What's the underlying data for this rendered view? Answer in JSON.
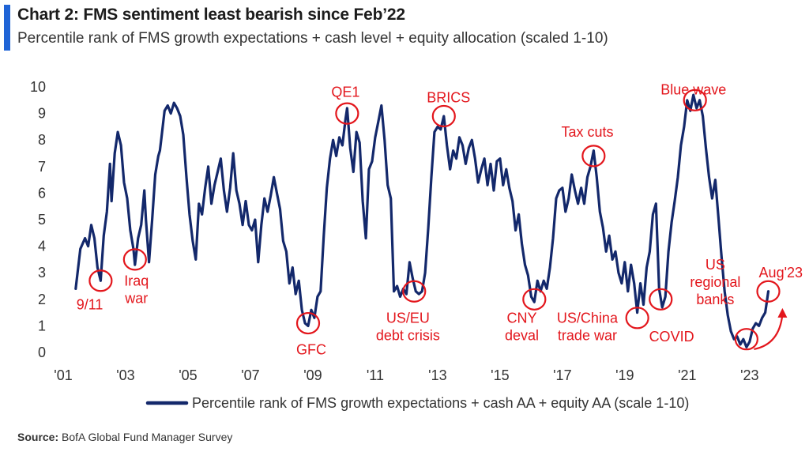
{
  "header": {
    "title": "Chart 2: FMS sentiment least bearish since Feb’22",
    "subtitle": "Percentile rank of FMS growth expectations + cash level + equity allocation (scaled 1-10)"
  },
  "footer": {
    "source_label": "Source:",
    "source_text": "BofA Global Fund Manager Survey"
  },
  "colors": {
    "line": "#13286b",
    "annotation": "#e3161c",
    "accent": "#1f64d6"
  },
  "chart_data": {
    "type": "line",
    "title": "Chart 2: FMS sentiment least bearish since Feb’22",
    "subtitle": "Percentile rank of FMS growth expectations + cash level + equity allocation (scaled 1-10)",
    "xlabel": "",
    "ylabel": "",
    "ylim": [
      0,
      10
    ],
    "yticks": [
      0,
      1,
      2,
      3,
      4,
      5,
      6,
      7,
      8,
      9,
      10
    ],
    "xlim": [
      2001.0,
      2024.6
    ],
    "xticks": [
      {
        "value": 2001.0,
        "label": "'01"
      },
      {
        "value": 2003.0,
        "label": "'03"
      },
      {
        "value": 2005.0,
        "label": "'05"
      },
      {
        "value": 2007.0,
        "label": "'07"
      },
      {
        "value": 2009.0,
        "label": "'09"
      },
      {
        "value": 2011.0,
        "label": "'11"
      },
      {
        "value": 2013.0,
        "label": "'13"
      },
      {
        "value": 2015.0,
        "label": "'15"
      },
      {
        "value": 2017.0,
        "label": "'17"
      },
      {
        "value": 2019.0,
        "label": "'19"
      },
      {
        "value": 2021.0,
        "label": "'21"
      },
      {
        "value": 2023.0,
        "label": "'23"
      }
    ],
    "grid": false,
    "legend": "bottom-center",
    "series": [
      {
        "name": "Percentile rank of FMS growth expectations + cash AA + equity AA (scale 1-10)",
        "points": [
          [
            2001.4,
            2.4
          ],
          [
            2001.55,
            3.9
          ],
          [
            2001.7,
            4.3
          ],
          [
            2001.8,
            4.0
          ],
          [
            2001.9,
            4.8
          ],
          [
            2002.0,
            4.3
          ],
          [
            2002.1,
            3.2
          ],
          [
            2002.2,
            2.7
          ],
          [
            2002.3,
            4.4
          ],
          [
            2002.4,
            5.3
          ],
          [
            2002.5,
            7.1
          ],
          [
            2002.55,
            5.7
          ],
          [
            2002.65,
            7.5
          ],
          [
            2002.75,
            8.3
          ],
          [
            2002.85,
            7.8
          ],
          [
            2002.95,
            6.4
          ],
          [
            2003.05,
            5.8
          ],
          [
            2003.15,
            4.6
          ],
          [
            2003.25,
            3.9
          ],
          [
            2003.3,
            3.3
          ],
          [
            2003.4,
            4.3
          ],
          [
            2003.5,
            4.8
          ],
          [
            2003.6,
            6.1
          ],
          [
            2003.65,
            5.0
          ],
          [
            2003.75,
            3.4
          ],
          [
            2003.85,
            5.0
          ],
          [
            2003.95,
            6.7
          ],
          [
            2004.05,
            7.4
          ],
          [
            2004.1,
            7.6
          ],
          [
            2004.15,
            8.1
          ],
          [
            2004.25,
            9.1
          ],
          [
            2004.35,
            9.3
          ],
          [
            2004.45,
            9.0
          ],
          [
            2004.55,
            9.4
          ],
          [
            2004.65,
            9.2
          ],
          [
            2004.75,
            8.9
          ],
          [
            2004.85,
            8.2
          ],
          [
            2004.95,
            6.6
          ],
          [
            2005.05,
            5.2
          ],
          [
            2005.15,
            4.2
          ],
          [
            2005.25,
            3.5
          ],
          [
            2005.35,
            5.6
          ],
          [
            2005.45,
            5.2
          ],
          [
            2005.55,
            6.2
          ],
          [
            2005.65,
            7.0
          ],
          [
            2005.75,
            5.6
          ],
          [
            2005.85,
            6.3
          ],
          [
            2005.95,
            6.8
          ],
          [
            2006.05,
            7.3
          ],
          [
            2006.15,
            6.1
          ],
          [
            2006.25,
            5.3
          ],
          [
            2006.35,
            6.2
          ],
          [
            2006.45,
            7.5
          ],
          [
            2006.55,
            6.1
          ],
          [
            2006.65,
            5.6
          ],
          [
            2006.75,
            4.8
          ],
          [
            2006.85,
            5.7
          ],
          [
            2006.95,
            4.8
          ],
          [
            2007.05,
            4.6
          ],
          [
            2007.15,
            5.0
          ],
          [
            2007.25,
            3.4
          ],
          [
            2007.35,
            4.8
          ],
          [
            2007.45,
            5.8
          ],
          [
            2007.55,
            5.3
          ],
          [
            2007.65,
            5.9
          ],
          [
            2007.75,
            6.6
          ],
          [
            2007.85,
            6.0
          ],
          [
            2007.95,
            5.4
          ],
          [
            2008.05,
            4.2
          ],
          [
            2008.15,
            3.8
          ],
          [
            2008.25,
            2.6
          ],
          [
            2008.35,
            3.2
          ],
          [
            2008.45,
            2.2
          ],
          [
            2008.55,
            2.7
          ],
          [
            2008.65,
            1.6
          ],
          [
            2008.75,
            1.1
          ],
          [
            2008.85,
            1.0
          ],
          [
            2008.95,
            1.6
          ],
          [
            2009.05,
            1.3
          ],
          [
            2009.15,
            2.1
          ],
          [
            2009.25,
            2.3
          ],
          [
            2009.35,
            4.4
          ],
          [
            2009.45,
            6.2
          ],
          [
            2009.55,
            7.3
          ],
          [
            2009.65,
            8.0
          ],
          [
            2009.75,
            7.4
          ],
          [
            2009.85,
            8.1
          ],
          [
            2009.95,
            7.8
          ],
          [
            2010.05,
            8.8
          ],
          [
            2010.1,
            9.2
          ],
          [
            2010.2,
            7.7
          ],
          [
            2010.3,
            6.8
          ],
          [
            2010.4,
            8.3
          ],
          [
            2010.5,
            7.9
          ],
          [
            2010.6,
            5.7
          ],
          [
            2010.7,
            4.3
          ],
          [
            2010.8,
            6.9
          ],
          [
            2010.9,
            7.2
          ],
          [
            2011.0,
            8.1
          ],
          [
            2011.1,
            8.7
          ],
          [
            2011.2,
            9.3
          ],
          [
            2011.3,
            8.0
          ],
          [
            2011.4,
            6.3
          ],
          [
            2011.5,
            5.8
          ],
          [
            2011.6,
            2.3
          ],
          [
            2011.7,
            2.5
          ],
          [
            2011.8,
            2.1
          ],
          [
            2011.9,
            2.4
          ],
          [
            2012.0,
            2.2
          ],
          [
            2012.1,
            3.4
          ],
          [
            2012.2,
            2.8
          ],
          [
            2012.3,
            2.3
          ],
          [
            2012.4,
            2.2
          ],
          [
            2012.5,
            2.3
          ],
          [
            2012.6,
            3.0
          ],
          [
            2012.7,
            4.7
          ],
          [
            2012.8,
            6.6
          ],
          [
            2012.9,
            8.3
          ],
          [
            2013.0,
            8.5
          ],
          [
            2013.1,
            8.4
          ],
          [
            2013.2,
            8.9
          ],
          [
            2013.3,
            7.8
          ],
          [
            2013.4,
            6.9
          ],
          [
            2013.5,
            7.6
          ],
          [
            2013.6,
            7.3
          ],
          [
            2013.7,
            8.1
          ],
          [
            2013.8,
            7.8
          ],
          [
            2013.9,
            7.1
          ],
          [
            2014.0,
            7.7
          ],
          [
            2014.1,
            8.0
          ],
          [
            2014.2,
            7.3
          ],
          [
            2014.3,
            6.4
          ],
          [
            2014.4,
            6.9
          ],
          [
            2014.5,
            7.3
          ],
          [
            2014.6,
            6.3
          ],
          [
            2014.7,
            7.1
          ],
          [
            2014.8,
            6.1
          ],
          [
            2014.9,
            7.2
          ],
          [
            2015.0,
            7.3
          ],
          [
            2015.1,
            6.3
          ],
          [
            2015.2,
            6.9
          ],
          [
            2015.3,
            6.2
          ],
          [
            2015.4,
            5.7
          ],
          [
            2015.5,
            4.6
          ],
          [
            2015.6,
            5.2
          ],
          [
            2015.7,
            4.1
          ],
          [
            2015.8,
            3.3
          ],
          [
            2015.9,
            2.9
          ],
          [
            2016.0,
            2.1
          ],
          [
            2016.1,
            1.9
          ],
          [
            2016.2,
            2.7
          ],
          [
            2016.3,
            2.3
          ],
          [
            2016.4,
            2.7
          ],
          [
            2016.5,
            2.4
          ],
          [
            2016.6,
            3.2
          ],
          [
            2016.7,
            4.3
          ],
          [
            2016.8,
            5.8
          ],
          [
            2016.9,
            6.1
          ],
          [
            2017.0,
            6.2
          ],
          [
            2017.1,
            5.3
          ],
          [
            2017.2,
            5.8
          ],
          [
            2017.3,
            6.7
          ],
          [
            2017.4,
            6.1
          ],
          [
            2017.5,
            5.6
          ],
          [
            2017.6,
            6.2
          ],
          [
            2017.7,
            5.6
          ],
          [
            2017.8,
            6.6
          ],
          [
            2017.9,
            7.0
          ],
          [
            2018.0,
            7.6
          ],
          [
            2018.1,
            6.6
          ],
          [
            2018.2,
            5.3
          ],
          [
            2018.3,
            4.7
          ],
          [
            2018.4,
            3.8
          ],
          [
            2018.5,
            4.4
          ],
          [
            2018.6,
            3.5
          ],
          [
            2018.7,
            3.8
          ],
          [
            2018.8,
            3.0
          ],
          [
            2018.9,
            2.6
          ],
          [
            2019.0,
            3.4
          ],
          [
            2019.1,
            2.3
          ],
          [
            2019.2,
            3.3
          ],
          [
            2019.3,
            2.6
          ],
          [
            2019.4,
            1.5
          ],
          [
            2019.5,
            2.6
          ],
          [
            2019.6,
            1.8
          ],
          [
            2019.7,
            3.2
          ],
          [
            2019.8,
            3.8
          ],
          [
            2019.9,
            5.2
          ],
          [
            2020.0,
            5.6
          ],
          [
            2020.1,
            2.4
          ],
          [
            2020.2,
            1.7
          ],
          [
            2020.3,
            2.1
          ],
          [
            2020.4,
            3.8
          ],
          [
            2020.5,
            4.9
          ],
          [
            2020.6,
            5.7
          ],
          [
            2020.7,
            6.6
          ],
          [
            2020.8,
            7.8
          ],
          [
            2020.9,
            8.5
          ],
          [
            2021.0,
            9.5
          ],
          [
            2021.1,
            9.1
          ],
          [
            2021.2,
            9.7
          ],
          [
            2021.3,
            9.2
          ],
          [
            2021.4,
            9.5
          ],
          [
            2021.5,
            8.9
          ],
          [
            2021.6,
            7.7
          ],
          [
            2021.7,
            6.6
          ],
          [
            2021.8,
            5.8
          ],
          [
            2021.9,
            6.5
          ],
          [
            2022.0,
            5.1
          ],
          [
            2022.1,
            3.6
          ],
          [
            2022.2,
            2.3
          ],
          [
            2022.3,
            1.4
          ],
          [
            2022.4,
            0.8
          ],
          [
            2022.5,
            0.5
          ],
          [
            2022.6,
            0.6
          ],
          [
            2022.7,
            0.3
          ],
          [
            2022.8,
            0.5
          ],
          [
            2022.9,
            0.2
          ],
          [
            2023.0,
            0.4
          ],
          [
            2023.1,
            0.9
          ],
          [
            2023.2,
            1.1
          ],
          [
            2023.3,
            1.0
          ],
          [
            2023.4,
            1.3
          ],
          [
            2023.5,
            1.5
          ],
          [
            2023.6,
            2.3
          ]
        ]
      }
    ],
    "annotations": [
      {
        "label": [
          "9/11"
        ],
        "circle_at": [
          2002.2,
          2.7
        ],
        "label_at": [
          2001.85,
          1.8
        ]
      },
      {
        "label": [
          "Iraq",
          "war"
        ],
        "circle_at": [
          2003.3,
          3.5
        ],
        "label_at": [
          2003.35,
          2.7
        ]
      },
      {
        "label": [
          "GFC"
        ],
        "circle_at": [
          2008.85,
          1.1
        ],
        "label_at": [
          2008.95,
          0.1
        ]
      },
      {
        "label": [
          "QE1"
        ],
        "circle_at": [
          2010.1,
          9.0
        ],
        "label_at": [
          2010.05,
          9.8
        ]
      },
      {
        "label": [
          "US/EU",
          "debt crisis"
        ],
        "circle_at": [
          2012.25,
          2.3
        ],
        "label_at": [
          2012.05,
          1.3
        ]
      },
      {
        "label": [
          "BRICS"
        ],
        "circle_at": [
          2013.2,
          8.9
        ],
        "label_at": [
          2013.35,
          9.6
        ]
      },
      {
        "label": [
          "CNY",
          "deval"
        ],
        "circle_at": [
          2016.1,
          2.0
        ],
        "label_at": [
          2015.7,
          1.3
        ]
      },
      {
        "label": [
          "Tax cuts"
        ],
        "circle_at": [
          2018.0,
          7.4
        ],
        "label_at": [
          2017.8,
          8.3
        ]
      },
      {
        "label": [
          "US/China",
          "trade war"
        ],
        "circle_at": [
          2019.4,
          1.3
        ],
        "label_at": [
          2017.8,
          1.3
        ]
      },
      {
        "label": [
          "COVID"
        ],
        "circle_at": [
          2020.15,
          2.0
        ],
        "label_at": [
          2020.5,
          0.6
        ]
      },
      {
        "label": [
          "Blue wave"
        ],
        "circle_at": [
          2021.25,
          9.5
        ],
        "label_at": [
          2021.2,
          9.9
        ]
      },
      {
        "label": [
          "US",
          "regional",
          "banks"
        ],
        "circle_at": [
          2022.9,
          0.5
        ],
        "label_at": [
          2021.9,
          3.3
        ]
      },
      {
        "label": [
          "Aug'23"
        ],
        "circle_at": [
          2023.6,
          2.3
        ],
        "label_at": [
          2024.0,
          3.0
        ]
      }
    ]
  }
}
